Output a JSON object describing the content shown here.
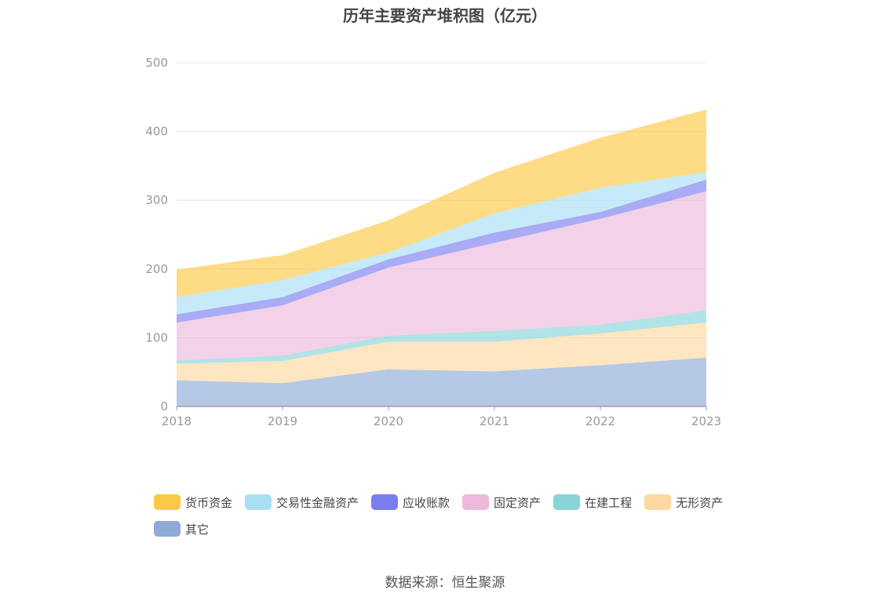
{
  "chart_data": {
    "type": "area",
    "stacked": true,
    "title": "历年主要资产堆积图（亿元）",
    "source": "数据来源：恒生聚源",
    "categories": [
      "2018",
      "2019",
      "2020",
      "2021",
      "2022",
      "2023"
    ],
    "ylim": [
      0,
      500
    ],
    "yticks": [
      "0",
      "100",
      "200",
      "300",
      "400",
      "500"
    ],
    "grid": true,
    "legend_position": "bottom",
    "series": [
      {
        "name": "其它",
        "color": "#8eabd8",
        "values": [
          38,
          34,
          54,
          51,
          60,
          71
        ]
      },
      {
        "name": "无形资产",
        "color": "#fdd8a0",
        "values": [
          24,
          32,
          40,
          43,
          46,
          51
        ]
      },
      {
        "name": "在建工程",
        "color": "#88d4d8",
        "values": [
          5,
          8,
          9,
          16,
          13,
          18
        ]
      },
      {
        "name": "固定资产",
        "color": "#ecb8dc",
        "values": [
          55,
          73,
          99,
          128,
          154,
          173
        ]
      },
      {
        "name": "应收账款",
        "color": "#7b7ef0",
        "values": [
          12,
          12,
          12,
          15,
          10,
          17
        ]
      },
      {
        "name": "交易性金融资产",
        "color": "#a9dff5",
        "values": [
          25,
          25,
          10,
          28,
          35,
          11
        ]
      },
      {
        "name": "货币资金",
        "color": "#fdc843",
        "values": [
          40,
          36,
          47,
          59,
          73,
          91
        ]
      }
    ]
  }
}
